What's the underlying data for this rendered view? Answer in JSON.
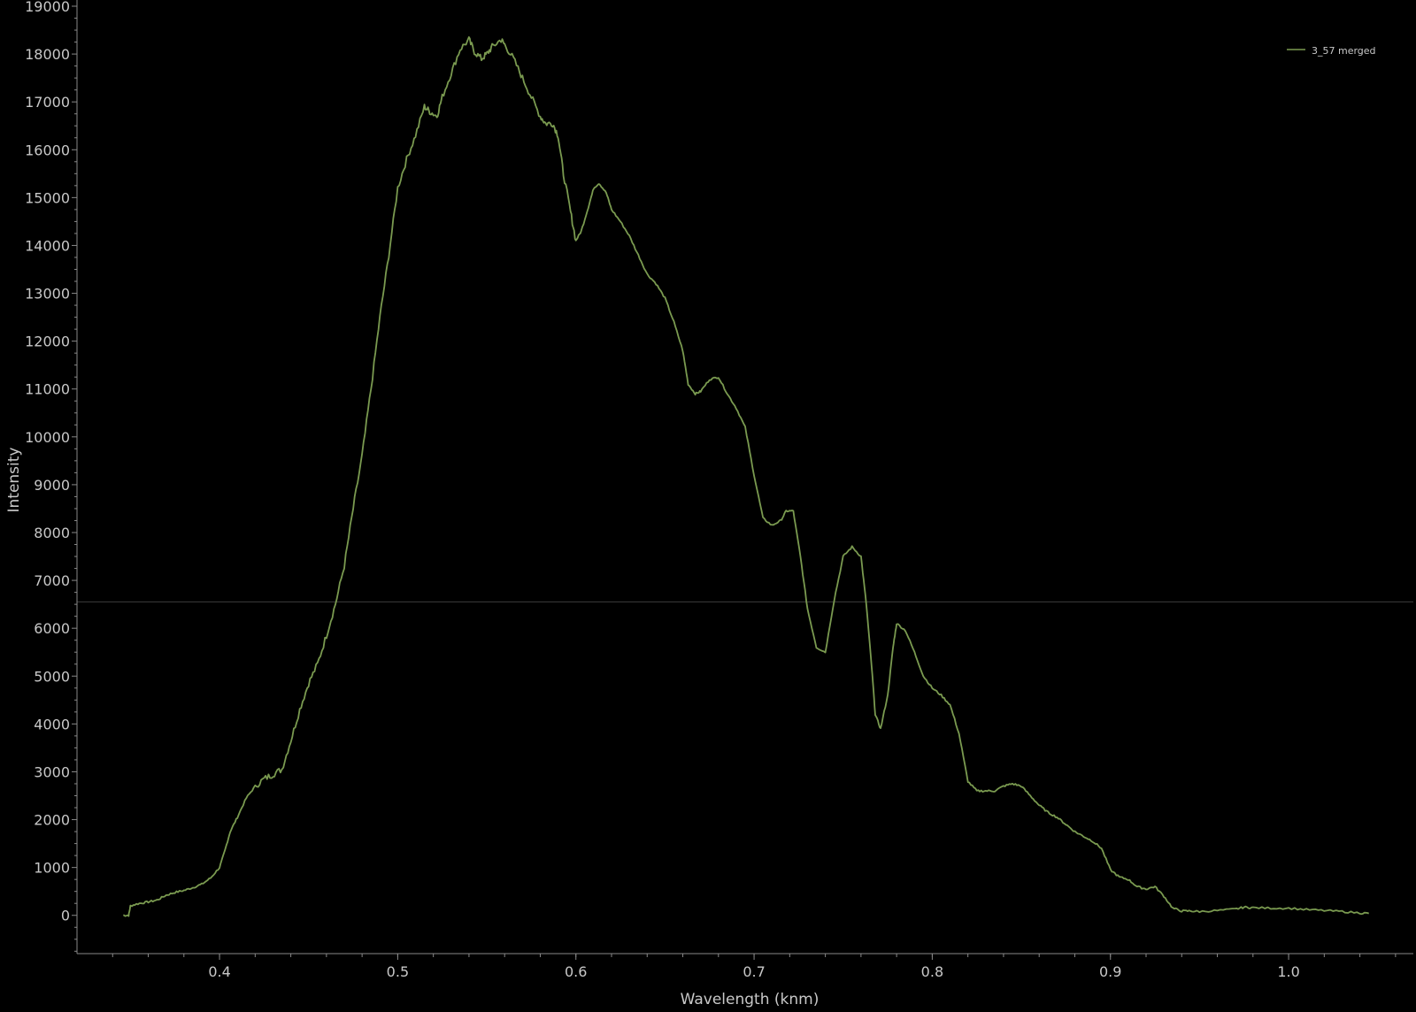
{
  "chart_data": {
    "type": "line",
    "xlabel": "Wavelength (knm)",
    "ylabel": "Intensity",
    "xlim": [
      0.32,
      1.07
    ],
    "ylim": [
      -800,
      19000
    ],
    "x_ticks": [
      0.4,
      0.5,
      0.6,
      0.7,
      0.8,
      0.9,
      1.0
    ],
    "x_tick_labels": [
      "0.4",
      "0.5",
      "0.6",
      "0.7",
      "0.8",
      "0.9",
      "1.0"
    ],
    "y_ticks": [
      0,
      1000,
      2000,
      3000,
      4000,
      5000,
      6000,
      7000,
      8000,
      9000,
      10000,
      11000,
      12000,
      13000,
      14000,
      15000,
      16000,
      17000,
      18000,
      19000
    ],
    "y_tick_labels": [
      "0",
      "1000",
      "2000",
      "3000",
      "4000",
      "5000",
      "6000",
      "7000",
      "8000",
      "9000",
      "10000",
      "11000",
      "12000",
      "13000",
      "14000",
      "15000",
      "16000",
      "17000",
      "18000",
      "19000"
    ],
    "grid": false,
    "reference_line_y": 6550,
    "legend": {
      "position": "top-right",
      "entries": [
        "3_57 merged"
      ]
    },
    "series": [
      {
        "name": "3_57 merged",
        "color": "#7a9a50",
        "x": [
          0.346,
          0.349,
          0.35,
          0.355,
          0.36,
          0.365,
          0.37,
          0.375,
          0.38,
          0.385,
          0.39,
          0.395,
          0.4,
          0.403,
          0.406,
          0.41,
          0.415,
          0.42,
          0.425,
          0.43,
          0.435,
          0.44,
          0.445,
          0.45,
          0.455,
          0.46,
          0.465,
          0.47,
          0.475,
          0.48,
          0.485,
          0.49,
          0.495,
          0.5,
          0.505,
          0.51,
          0.515,
          0.518,
          0.522,
          0.525,
          0.53,
          0.535,
          0.54,
          0.543,
          0.547,
          0.55,
          0.553,
          0.558,
          0.56,
          0.565,
          0.57,
          0.575,
          0.58,
          0.583,
          0.587,
          0.59,
          0.593,
          0.597,
          0.6,
          0.603,
          0.607,
          0.61,
          0.613,
          0.617,
          0.62,
          0.625,
          0.63,
          0.635,
          0.64,
          0.645,
          0.65,
          0.655,
          0.66,
          0.663,
          0.667,
          0.67,
          0.675,
          0.68,
          0.685,
          0.69,
          0.695,
          0.7,
          0.705,
          0.71,
          0.715,
          0.718,
          0.722,
          0.726,
          0.73,
          0.735,
          0.74,
          0.745,
          0.75,
          0.755,
          0.76,
          0.763,
          0.766,
          0.768,
          0.771,
          0.775,
          0.778,
          0.78,
          0.785,
          0.79,
          0.795,
          0.8,
          0.805,
          0.81,
          0.815,
          0.82,
          0.825,
          0.83,
          0.835,
          0.84,
          0.845,
          0.85,
          0.855,
          0.86,
          0.865,
          0.87,
          0.875,
          0.88,
          0.885,
          0.89,
          0.895,
          0.9,
          0.905,
          0.91,
          0.915,
          0.92,
          0.925,
          0.93,
          0.935,
          0.94,
          0.945,
          0.95,
          0.96,
          0.97,
          0.975,
          0.98,
          0.99,
          1.0,
          1.01,
          1.02,
          1.03,
          1.04,
          1.045
        ],
        "y": [
          0,
          0,
          200,
          250,
          280,
          320,
          420,
          480,
          520,
          580,
          650,
          780,
          1000,
          1350,
          1750,
          2050,
          2450,
          2700,
          2850,
          2950,
          3050,
          3650,
          4300,
          4850,
          5250,
          5850,
          6500,
          7300,
          8500,
          9600,
          11000,
          12500,
          13800,
          15200,
          15800,
          16300,
          16900,
          16800,
          16700,
          17100,
          17600,
          18100,
          18300,
          18050,
          17900,
          18000,
          18150,
          18300,
          18200,
          17900,
          17500,
          17100,
          16700,
          16550,
          16550,
          16300,
          15500,
          14700,
          14100,
          14300,
          14800,
          15200,
          15300,
          15100,
          14750,
          14500,
          14200,
          13800,
          13400,
          13200,
          12900,
          12400,
          11800,
          11100,
          10900,
          10950,
          11200,
          11250,
          10900,
          10600,
          10200,
          9200,
          8300,
          8150,
          8250,
          8450,
          8450,
          7500,
          6400,
          5600,
          5500,
          6600,
          7500,
          7700,
          7500,
          6500,
          5200,
          4200,
          3900,
          4600,
          5600,
          6100,
          5950,
          5500,
          5000,
          4750,
          4600,
          4400,
          3800,
          2800,
          2600,
          2600,
          2600,
          2700,
          2750,
          2700,
          2500,
          2300,
          2150,
          2050,
          1900,
          1750,
          1650,
          1550,
          1400,
          950,
          800,
          750,
          600,
          550,
          600,
          400,
          150,
          90,
          90,
          80,
          100,
          130,
          170,
          160,
          150,
          150,
          120,
          100,
          80,
          50,
          40
        ]
      }
    ]
  }
}
